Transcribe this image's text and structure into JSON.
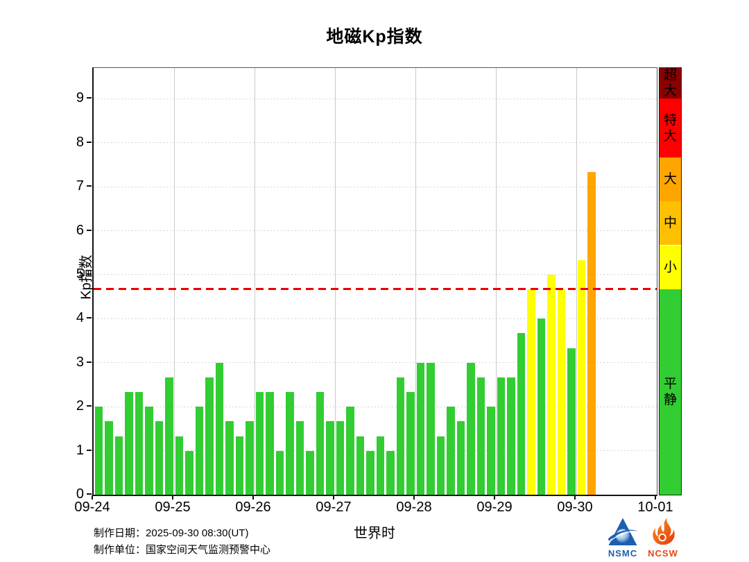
{
  "title": "地磁Kp指数",
  "chart_data": {
    "type": "bar",
    "title": "地磁Kp指数",
    "xlabel": "世界时",
    "ylabel": "Kp指数",
    "ylim": [
      0,
      9.7
    ],
    "yticks": [
      0,
      1,
      2,
      3,
      4,
      5,
      6,
      7,
      8,
      9
    ],
    "grid": {
      "vertical": "solid-light",
      "horizontal": "dotted-faint"
    },
    "legend_position": "right-colorbar",
    "day_labels": [
      "09-24",
      "09-25",
      "09-26",
      "09-27",
      "09-28",
      "09-29",
      "09-30",
      "10-01"
    ],
    "bars_per_day": 8,
    "bar_interval_hours": 3,
    "values": [
      2,
      1.67,
      1.33,
      2.33,
      2.33,
      2,
      1.67,
      2.67,
      1.33,
      1,
      2,
      2.67,
      3,
      1.67,
      1.33,
      1.67,
      2.33,
      2.33,
      1,
      2.33,
      1.67,
      1,
      2.33,
      1.67,
      1.67,
      2,
      1.33,
      1,
      1.33,
      1,
      2.67,
      2.33,
      3,
      3,
      1.33,
      2,
      1.67,
      3,
      2.67,
      2,
      2.67,
      2.67,
      3.67,
      4.67,
      4,
      5,
      4.67,
      3.33,
      5.33,
      7.33
    ],
    "threshold": {
      "value": 4.67,
      "color": "#f00000",
      "style": "dashed"
    },
    "levels": [
      {
        "label": "超大",
        "color": "#8b0000",
        "from": 9.0,
        "to": 9.7
      },
      {
        "label": "特大",
        "color": "#ff0000",
        "from": 7.67,
        "to": 9.0
      },
      {
        "label": "大",
        "color": "#ffa500",
        "from": 6.67,
        "to": 7.67
      },
      {
        "label": "中",
        "color": "#ffc000",
        "from": 5.67,
        "to": 6.67
      },
      {
        "label": "小",
        "color": "#ffff00",
        "from": 4.67,
        "to": 5.67
      },
      {
        "label": "平静",
        "color": "#32cd32",
        "from": 0,
        "to": 4.67
      }
    ]
  },
  "footer": {
    "date_label": "制作日期：",
    "date_value": "2025-09-30 08:30(UT)",
    "org_label": "制作单位：",
    "org_value": "国家空间天气监测预警中心"
  },
  "logos": {
    "nsmc": "NSMC",
    "ncsw": "NCSW"
  }
}
